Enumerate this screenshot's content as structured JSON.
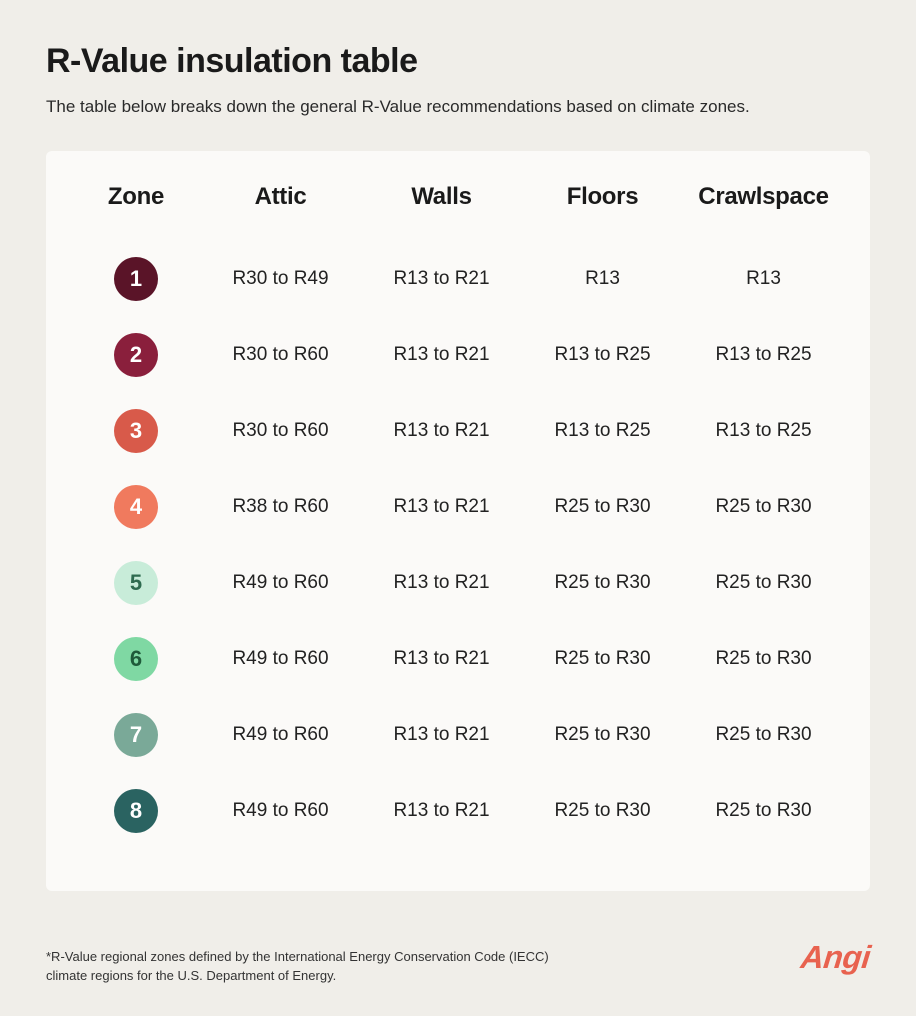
{
  "title": "R-Value insulation table",
  "subtitle": "The table below breaks down the general R-Value recommendations based on climate zones.",
  "table": {
    "columns": [
      "Zone",
      "Attic",
      "Walls",
      "Floors",
      "Crawlspace"
    ],
    "rows": [
      {
        "zone": "1",
        "badge_bg": "#5a1428",
        "badge_fg": "#ffffff",
        "attic": "R30 to R49",
        "walls": "R13 to R21",
        "floors": "R13",
        "crawlspace": "R13"
      },
      {
        "zone": "2",
        "badge_bg": "#8a1f3c",
        "badge_fg": "#ffffff",
        "attic": "R30 to R60",
        "walls": "R13 to R21",
        "floors": "R13 to R25",
        "crawlspace": "R13 to R25"
      },
      {
        "zone": "3",
        "badge_bg": "#d85a4a",
        "badge_fg": "#ffffff",
        "attic": "R30 to R60",
        "walls": "R13 to R21",
        "floors": "R13 to R25",
        "crawlspace": "R13 to R25"
      },
      {
        "zone": "4",
        "badge_bg": "#f07a5e",
        "badge_fg": "#ffffff",
        "attic": "R38 to R60",
        "walls": "R13 to R21",
        "floors": "R25 to R30",
        "crawlspace": "R25 to R30"
      },
      {
        "zone": "5",
        "badge_bg": "#c8ecd9",
        "badge_fg": "#2e6b4f",
        "attic": "R49 to R60",
        "walls": "R13 to R21",
        "floors": "R25 to R30",
        "crawlspace": "R25 to R30"
      },
      {
        "zone": "6",
        "badge_bg": "#7fd8a3",
        "badge_fg": "#1f5a3a",
        "attic": "R49 to R60",
        "walls": "R13 to R21",
        "floors": "R25 to R30",
        "crawlspace": "R25 to R30"
      },
      {
        "zone": "7",
        "badge_bg": "#7aa998",
        "badge_fg": "#ffffff",
        "attic": "R49 to R60",
        "walls": "R13 to R21",
        "floors": "R25 to R30",
        "crawlspace": "R25 to R30"
      },
      {
        "zone": "8",
        "badge_bg": "#2a6361",
        "badge_fg": "#ffffff",
        "attic": "R49 to R60",
        "walls": "R13 to R21",
        "floors": "R25 to R30",
        "crawlspace": "R25 to R30"
      }
    ],
    "header_fontsize": 24,
    "cell_fontsize": 19,
    "badge_size": 44,
    "card_bg": "#fbfaf8",
    "page_bg": "#f0eee9"
  },
  "footnote": "*R-Value regional zones defined by the International Energy Conservation Code (IECC) climate regions for the U.S. Department of Energy.",
  "brand": {
    "label": "Angi",
    "color": "#e8624f"
  }
}
